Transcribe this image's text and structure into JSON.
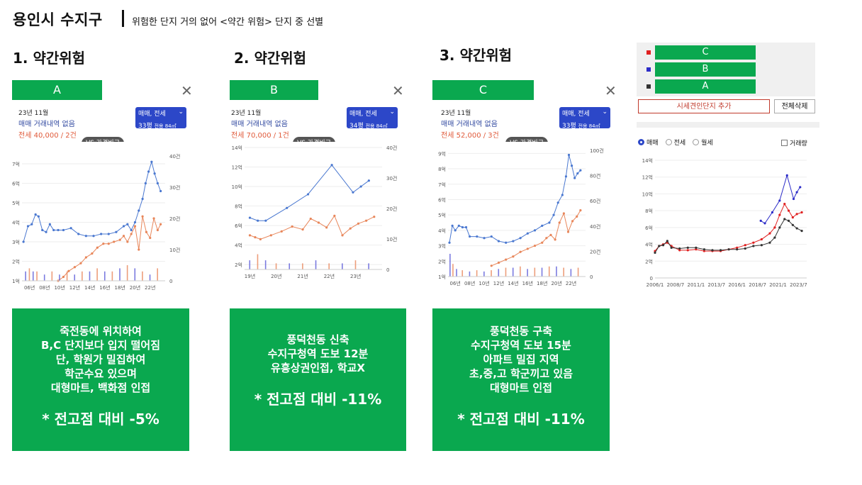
{
  "header": {
    "title": "용인시 수지구",
    "subtitle": "위험한 단지 거의 없어 <약간 위험> 단지 중 선별"
  },
  "sections": [
    {
      "heading": "1. 약간위험",
      "label": "A",
      "close": "✕",
      "info": {
        "month": "23년 11월",
        "none": "매매 거래내역 없음",
        "jeonse": "전세 40,000 / 2건"
      },
      "badge": {
        "type": "매매, 전세",
        "size": "33평",
        "area": "전용 84㎡"
      },
      "vs": "VS 가격비교",
      "desc": "죽전동에 위치하여\nB,C 단지보다 입지 떨어짐\n단, 학원가 밀집하여\n학군수요 있으며\n대형마트, 백화점 인접",
      "pct": "* 전고점 대비 -5%"
    },
    {
      "heading": "2. 약간위험",
      "label": "B",
      "close": "✕",
      "info": {
        "month": "23년 11월",
        "none": "매매 거래내역 없음",
        "jeonse": "전세 70,000 / 1건"
      },
      "badge": {
        "type": "매매, 전세",
        "size": "34평",
        "area": "전용 84㎡"
      },
      "vs": "VS 가격비교",
      "desc": "풍덕천동 신축\n수지구청역 도보 12분\n유흥상권인접, 학교X",
      "pct": "* 전고점 대비 -11%"
    },
    {
      "heading": "3. 약간위험",
      "label": "C",
      "close": "✕",
      "info": {
        "month": "23년 11월",
        "none": "매매 거래내역 없음",
        "jeonse": "전세 52,000 / 3건"
      },
      "badge": {
        "type": "매매, 전세",
        "size": "33평",
        "area": "전용 84㎡"
      },
      "vs": "VS 가격비교",
      "desc": "풍덕천동 구축\n수지구청역 도보 15분\n아파트 밀집 지역\n초,중,고 학군끼고 있음\n대형마트 인접",
      "pct": "* 전고점 대비 -11%"
    }
  ],
  "compare": {
    "items": [
      {
        "label": "C",
        "color": "#e02020"
      },
      {
        "label": "B",
        "color": "#2c2cc8"
      },
      {
        "label": "A",
        "color": "#333333"
      }
    ],
    "add_label": "시세견인단지 추가",
    "delete_label": "전체삭제",
    "radios": [
      "매매",
      "전세",
      "월세"
    ],
    "checkbox": "거래량"
  },
  "colors": {
    "green": "#0aa84f",
    "sale": "#4a78d0",
    "jeonse": "#e8865a"
  },
  "chart_data": [
    {
      "type": "line",
      "name": "A",
      "xticks": [
        "06년",
        "08년",
        "10년",
        "12년",
        "14년",
        "16년",
        "18년",
        "20년",
        "22년"
      ],
      "xlim": [
        2005,
        2024
      ],
      "yticks_left": [
        "1억",
        "2억",
        "3억",
        "4억",
        "5억",
        "6억",
        "7억"
      ],
      "ylim_left": [
        1,
        7.4
      ],
      "yticks_right": [
        "0",
        "10건",
        "20건",
        "30건",
        "40건"
      ],
      "ylim_right": [
        0,
        40
      ],
      "series": [
        {
          "kind": "sale",
          "color": "#4a78d0",
          "x": [
            2005.2,
            2005.8,
            2006.3,
            2006.8,
            2007.2,
            2007.7,
            2008.2,
            2008.7,
            2009.2,
            2009.8,
            2010.5,
            2011.5,
            2012.5,
            2013.5,
            2014.5,
            2015.5,
            2016.5,
            2017.5,
            2018.5,
            2019,
            2019.5,
            2020,
            2020.5,
            2021,
            2021.4,
            2021.8,
            2022.2,
            2022.6,
            2023,
            2023.4
          ],
          "y": [
            3.0,
            3.8,
            3.9,
            4.4,
            4.3,
            3.6,
            3.5,
            3.9,
            3.6,
            3.6,
            3.6,
            3.7,
            3.4,
            3.3,
            3.3,
            3.4,
            3.4,
            3.5,
            3.8,
            3.9,
            3.6,
            4.0,
            4.6,
            5.2,
            6.0,
            6.6,
            7.1,
            6.5,
            6.0,
            5.6
          ]
        },
        {
          "kind": "jeonse",
          "color": "#e8865a",
          "x": [
            2009.8,
            2010.5,
            2011.2,
            2012,
            2012.8,
            2013.5,
            2014.3,
            2015,
            2015.8,
            2016.5,
            2017.2,
            2018,
            2018.5,
            2019,
            2019.5,
            2020,
            2020.5,
            2021,
            2021.5,
            2022,
            2022.5,
            2023,
            2023.4
          ],
          "y": [
            1.0,
            1.2,
            1.5,
            1.7,
            1.9,
            2.2,
            2.4,
            2.7,
            2.9,
            2.9,
            3.0,
            3.1,
            3.3,
            3.0,
            3.4,
            3.8,
            2.6,
            4.3,
            3.5,
            3.2,
            4.2,
            3.6,
            3.9
          ]
        },
        {
          "kind": "volume",
          "x": [
            2005.5,
            2006,
            2006.5,
            2007,
            2008,
            2009,
            2010,
            2011,
            2012,
            2013,
            2014,
            2015,
            2016,
            2017,
            2018,
            2019,
            2020,
            2021,
            2022,
            2023
          ],
          "y": [
            3,
            4,
            3,
            3,
            2,
            3,
            2,
            3,
            2,
            3,
            3,
            4,
            3,
            3,
            4,
            5,
            4,
            3,
            2,
            4
          ]
        }
      ]
    },
    {
      "type": "line",
      "name": "B",
      "xticks": [
        "19년",
        "20년",
        "21년",
        "22년",
        "23년"
      ],
      "xlim": [
        2018.8,
        2024
      ],
      "yticks_left": [
        "2억",
        "4억",
        "6억",
        "8억",
        "10억",
        "12억",
        "14억"
      ],
      "ylim_left": [
        1.5,
        14
      ],
      "yticks_right": [
        "0",
        "10건",
        "20건",
        "30건",
        "40건"
      ],
      "ylim_right": [
        0,
        40
      ],
      "series": [
        {
          "kind": "sale",
          "color": "#4a78d0",
          "x": [
            2019,
            2019.3,
            2019.6,
            2020.4,
            2021.2,
            2022.1,
            2022.9,
            2023.2,
            2023.5
          ],
          "y": [
            6.8,
            6.5,
            6.5,
            7.8,
            9.2,
            12.2,
            9.4,
            10.0,
            10.6
          ]
        },
        {
          "kind": "jeonse",
          "color": "#e8865a",
          "x": [
            2019,
            2019.2,
            2019.4,
            2019.8,
            2020.2,
            2020.6,
            2021,
            2021.3,
            2021.6,
            2021.9,
            2022.2,
            2022.5,
            2022.8,
            2023.1,
            2023.4,
            2023.7
          ],
          "y": [
            5.0,
            4.8,
            4.6,
            5.0,
            5.4,
            5.9,
            5.6,
            6.7,
            6.3,
            5.8,
            7.0,
            5.0,
            5.7,
            6.2,
            6.5,
            6.9
          ]
        },
        {
          "kind": "volume",
          "x": [
            2019,
            2019.3,
            2019.6,
            2020,
            2020.5,
            2021,
            2021.5,
            2022,
            2022.5,
            2023,
            2023.5
          ],
          "y": [
            3,
            5,
            3,
            2,
            2,
            2,
            3,
            2,
            2,
            3,
            2
          ]
        }
      ]
    },
    {
      "type": "line",
      "name": "C",
      "xticks": [
        "06년",
        "08년",
        "10년",
        "12년",
        "14년",
        "16년",
        "18년",
        "20년",
        "22년"
      ],
      "xlim": [
        2005,
        2024
      ],
      "yticks_left": [
        "1억",
        "2억",
        "3억",
        "4억",
        "5억",
        "6억",
        "7억",
        "8억",
        "9억"
      ],
      "ylim_left": [
        1,
        9.2
      ],
      "yticks_right": [
        "0",
        "20건",
        "40건",
        "60건",
        "80건",
        "100건"
      ],
      "ylim_right": [
        0,
        100
      ],
      "series": [
        {
          "kind": "sale",
          "color": "#4a78d0",
          "x": [
            2005.2,
            2005.6,
            2006,
            2006.5,
            2007,
            2007.5,
            2008,
            2009,
            2010,
            2011,
            2012,
            2013,
            2014,
            2015,
            2016,
            2017,
            2018,
            2019,
            2019.6,
            2020.2,
            2020.8,
            2021.3,
            2021.7,
            2022.1,
            2022.5,
            2022.9,
            2023.3
          ],
          "y": [
            3.2,
            4.3,
            4.0,
            4.3,
            4.2,
            4.2,
            3.6,
            3.6,
            3.5,
            3.6,
            3.3,
            3.2,
            3.3,
            3.5,
            3.8,
            4.0,
            4.3,
            4.5,
            5.0,
            5.8,
            6.3,
            7.5,
            8.9,
            8.2,
            7.4,
            7.7,
            7.9
          ]
        },
        {
          "kind": "jeonse",
          "color": "#e8865a",
          "x": [
            2011,
            2012,
            2013,
            2014,
            2015,
            2016,
            2017,
            2018,
            2018.6,
            2019.2,
            2019.8,
            2020.4,
            2021,
            2021.6,
            2022.2,
            2022.8,
            2023.3
          ],
          "y": [
            1.7,
            1.9,
            2.1,
            2.3,
            2.6,
            2.8,
            3.0,
            3.2,
            3.5,
            3.7,
            3.4,
            4.5,
            5.1,
            3.9,
            4.6,
            4.9,
            5.3
          ]
        },
        {
          "kind": "volume",
          "x": [
            2005.3,
            2005.7,
            2006.2,
            2007,
            2008,
            2009,
            2010,
            2011,
            2012,
            2013,
            2014,
            2015,
            2016,
            2017,
            2018,
            2019,
            2020,
            2021,
            2022,
            2023
          ],
          "y": [
            18,
            10,
            6,
            5,
            4,
            5,
            4,
            5,
            6,
            7,
            7,
            8,
            6,
            7,
            7,
            8,
            8,
            7,
            6,
            7
          ]
        }
      ]
    },
    {
      "type": "line",
      "name": "compare",
      "xticks": [
        "2006/1",
        "2008/7",
        "2011/1",
        "2013/7",
        "2016/1",
        "2018/7",
        "2021/1",
        "2023/7"
      ],
      "xlim": [
        2006,
        2024.5
      ],
      "yticks_left": [
        "0",
        "2억",
        "4억",
        "6억",
        "8억",
        "10억",
        "12억",
        "14억"
      ],
      "ylim_left": [
        0,
        14
      ],
      "series": [
        {
          "name": "C",
          "color": "#e02020",
          "x": [
            2006,
            2006.5,
            2007,
            2007.5,
            2008,
            2009,
            2010,
            2011,
            2012,
            2013,
            2014,
            2015,
            2016,
            2017,
            2018,
            2019,
            2020,
            2020.6,
            2021.2,
            2021.8,
            2022.3,
            2022.8,
            2023.3,
            2023.9
          ],
          "y": [
            3.2,
            3.8,
            4.0,
            4.2,
            3.8,
            3.3,
            3.3,
            3.4,
            3.2,
            3.2,
            3.2,
            3.4,
            3.6,
            3.9,
            4.2,
            4.6,
            5.3,
            6.0,
            7.5,
            8.8,
            8.0,
            7.2,
            7.6,
            7.8
          ]
        },
        {
          "name": "B",
          "color": "#2c2cc8",
          "x": [
            2018.9,
            2019.4,
            2020.3,
            2021.2,
            2022.1,
            2022.9,
            2023.3,
            2023.7
          ],
          "y": [
            6.8,
            6.5,
            7.8,
            9.2,
            12.2,
            9.4,
            10.2,
            10.8
          ]
        },
        {
          "name": "A",
          "color": "#333333",
          "x": [
            2006,
            2006.5,
            2007,
            2007.5,
            2008,
            2009,
            2010,
            2011,
            2012,
            2013,
            2014,
            2015,
            2016,
            2017,
            2018,
            2019,
            2020,
            2020.6,
            2021.2,
            2021.8,
            2022.3,
            2022.8,
            2023.3,
            2023.9
          ],
          "y": [
            3.0,
            3.8,
            3.9,
            4.4,
            3.6,
            3.5,
            3.6,
            3.6,
            3.4,
            3.3,
            3.3,
            3.4,
            3.4,
            3.5,
            3.8,
            3.9,
            4.2,
            4.8,
            6.0,
            7.0,
            6.8,
            6.3,
            5.9,
            5.6
          ]
        }
      ]
    }
  ]
}
